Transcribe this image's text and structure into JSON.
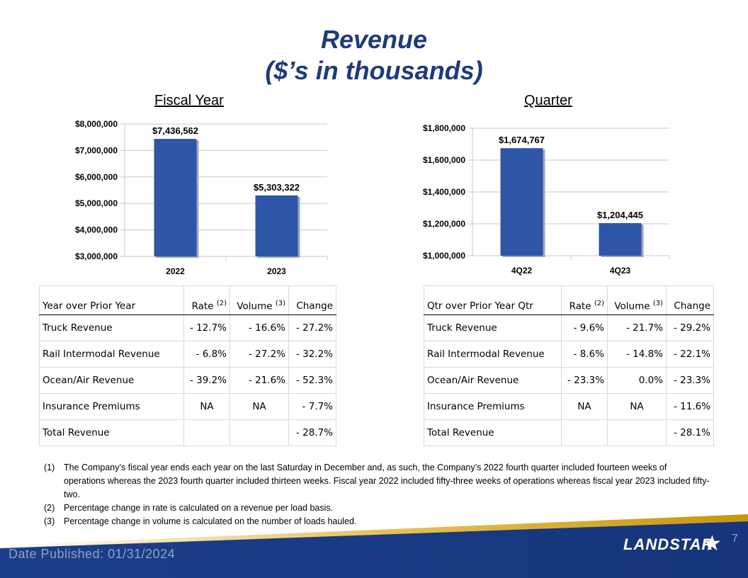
{
  "title": {
    "line1": "Revenue",
    "line2": "($’s in thousands)"
  },
  "fiscal_label": "Fiscal Year",
  "quarter_label": "Quarter",
  "chart_data": [
    {
      "type": "bar",
      "title": "Fiscal Year",
      "categories": [
        "2022",
        "2023"
      ],
      "values": [
        7436562,
        5303322
      ],
      "value_labels": [
        "$7,436,562",
        "$5,303,322"
      ],
      "ylim": [
        3000000,
        8000000
      ],
      "yticks": [
        3000000,
        4000000,
        5000000,
        6000000,
        7000000,
        8000000
      ],
      "ytick_labels": [
        "$3,000,000",
        "$4,000,000",
        "$5,000,000",
        "$6,000,000",
        "$7,000,000",
        "$8,000,000"
      ],
      "color": "#2f55a8",
      "grid": true
    },
    {
      "type": "bar",
      "title": "Quarter",
      "categories": [
        "4Q22",
        "4Q23"
      ],
      "values": [
        1674767,
        1204445
      ],
      "value_labels": [
        "$1,674,767",
        "$1,204,445"
      ],
      "ylim": [
        1000000,
        1800000
      ],
      "yticks": [
        1000000,
        1200000,
        1400000,
        1600000,
        1800000
      ],
      "ytick_labels": [
        "$1,000,000",
        "$1,200,000",
        "$1,400,000",
        "$1,600,000",
        "$1,800,000"
      ],
      "color": "#2f55a8",
      "grid": true
    }
  ],
  "year_table": {
    "headers": [
      "Year over Prior Year",
      "Rate",
      "(2)",
      "Volume",
      "(3)",
      "Change"
    ],
    "rows": [
      [
        "Truck Revenue",
        "- 12.7%",
        "- 16.6%",
        "- 27.2%"
      ],
      [
        "Rail Intermodal Revenue",
        "- 6.8%",
        "- 27.2%",
        "- 32.2%"
      ],
      [
        "Ocean/Air Revenue",
        "- 39.2%",
        "- 21.6%",
        "- 52.3%"
      ],
      [
        "Insurance Premiums",
        "NA",
        "NA",
        "- 7.7%"
      ],
      [
        "Total Revenue",
        "",
        "",
        "- 28.7%"
      ]
    ]
  },
  "quarter_table": {
    "headers": [
      "Qtr over Prior Year Qtr",
      "Rate",
      "(2)",
      "Volume",
      "(3)",
      "Change"
    ],
    "rows": [
      [
        "Truck Revenue",
        "- 9.6%",
        "- 21.7%",
        "- 29.2%"
      ],
      [
        "Rail Intermodal Revenue",
        "- 8.6%",
        "- 14.8%",
        "- 22.1%"
      ],
      [
        "Ocean/Air Revenue",
        "- 23.3%",
        "0.0%",
        "- 23.3%"
      ],
      [
        "Insurance Premiums",
        "NA",
        "NA",
        "- 11.6%"
      ],
      [
        "Total Revenue",
        "",
        "",
        "- 28.1%"
      ]
    ]
  },
  "notes": [
    {
      "num": "(1)",
      "text": "The Company’s fiscal year ends each year on the last Saturday in December and, as such, the Company’s 2022 fourth quarter included fourteen weeks of operations whereas the 2023 fourth quarter included thirteen weeks. Fiscal year 2022 included fifty-three weeks of operations whereas fiscal year 2023 included fifty-two."
    },
    {
      "num": "(2)",
      "text": "Percentage change in rate is calculated on a revenue per load basis."
    },
    {
      "num": "(3)",
      "text": "Percentage change in volume is calculated on the number of loads hauled."
    }
  ],
  "footer": {
    "date": "Date Published:  01/31/2024",
    "page": "7",
    "logo": "LANDSTAR",
    "logo_icon": "star-icon"
  }
}
